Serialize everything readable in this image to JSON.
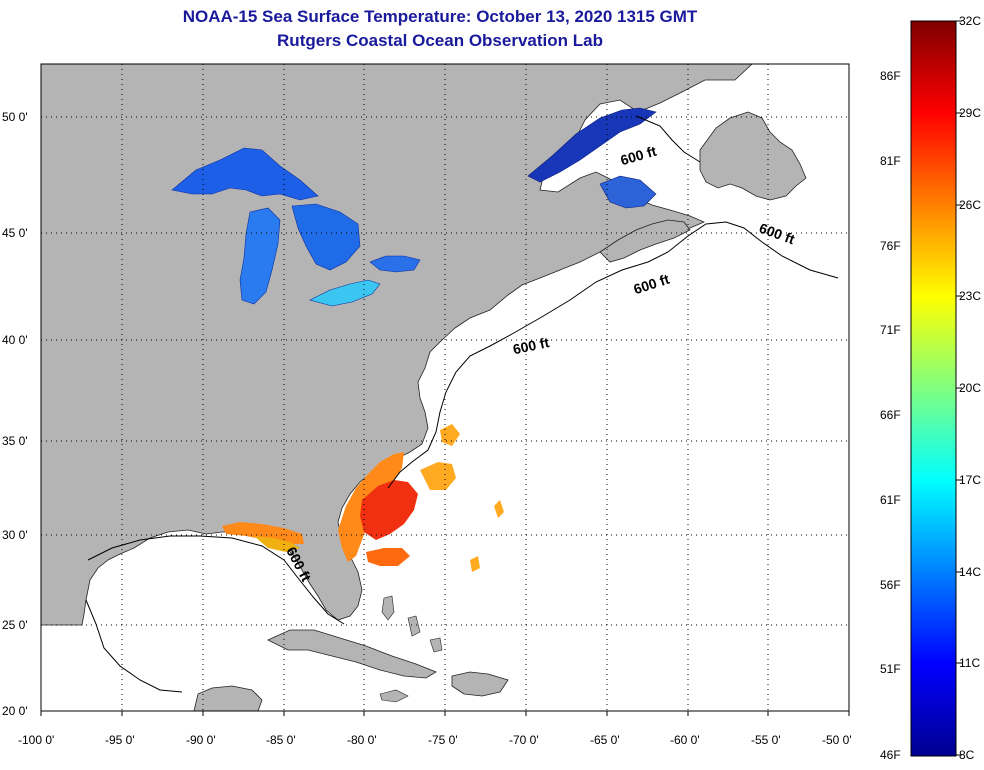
{
  "title": {
    "line1": "NOAA-15 Sea Surface Temperature:  October 13, 2020 1315 GMT",
    "line2": "Rutgers Coastal Ocean Observation Lab"
  },
  "map": {
    "lon_range": [
      -100,
      -50
    ],
    "lat_range": [
      20,
      52
    ],
    "lon_ticks": [
      "-100 0'",
      "-95 0'",
      "-90 0'",
      "-85 0'",
      "-80 0'",
      "-75 0'",
      "-70 0'",
      "-65 0'",
      "-60 0'",
      "-55 0'",
      "-50 0'"
    ],
    "lat_ticks": [
      {
        "lat": 50,
        "label": "50 0'"
      },
      {
        "lat": 45,
        "label": "45 0'"
      },
      {
        "lat": 40,
        "label": "40 0'"
      },
      {
        "lat": 35,
        "label": "35 0'"
      },
      {
        "lat": 30,
        "label": "30 0'"
      },
      {
        "lat": 25,
        "label": "25 0'"
      },
      {
        "lat": 20,
        "label": "20 0'"
      }
    ],
    "contour_labels": [
      "600 ft",
      "600 ft",
      "600 ft",
      "600 ft",
      "600 ft"
    ],
    "land_color": "#b4b4b4",
    "ocean_color": "#ffffff"
  },
  "colorbar": {
    "celsius_labels": [
      "32C",
      "29C",
      "26C",
      "23C",
      "20C",
      "17C",
      "14C",
      "11C",
      "8C"
    ],
    "fahrenheit_labels": [
      "86F",
      "81F",
      "76F",
      "71F",
      "66F",
      "61F",
      "56F",
      "51F",
      "46F"
    ],
    "min_c": 8,
    "max_c": 32,
    "colors": [
      "#7f0000",
      "#ff0000",
      "#ff8000",
      "#ffff00",
      "#80ff80",
      "#00ffff",
      "#0080ff",
      "#0000ff",
      "#00008f"
    ]
  }
}
